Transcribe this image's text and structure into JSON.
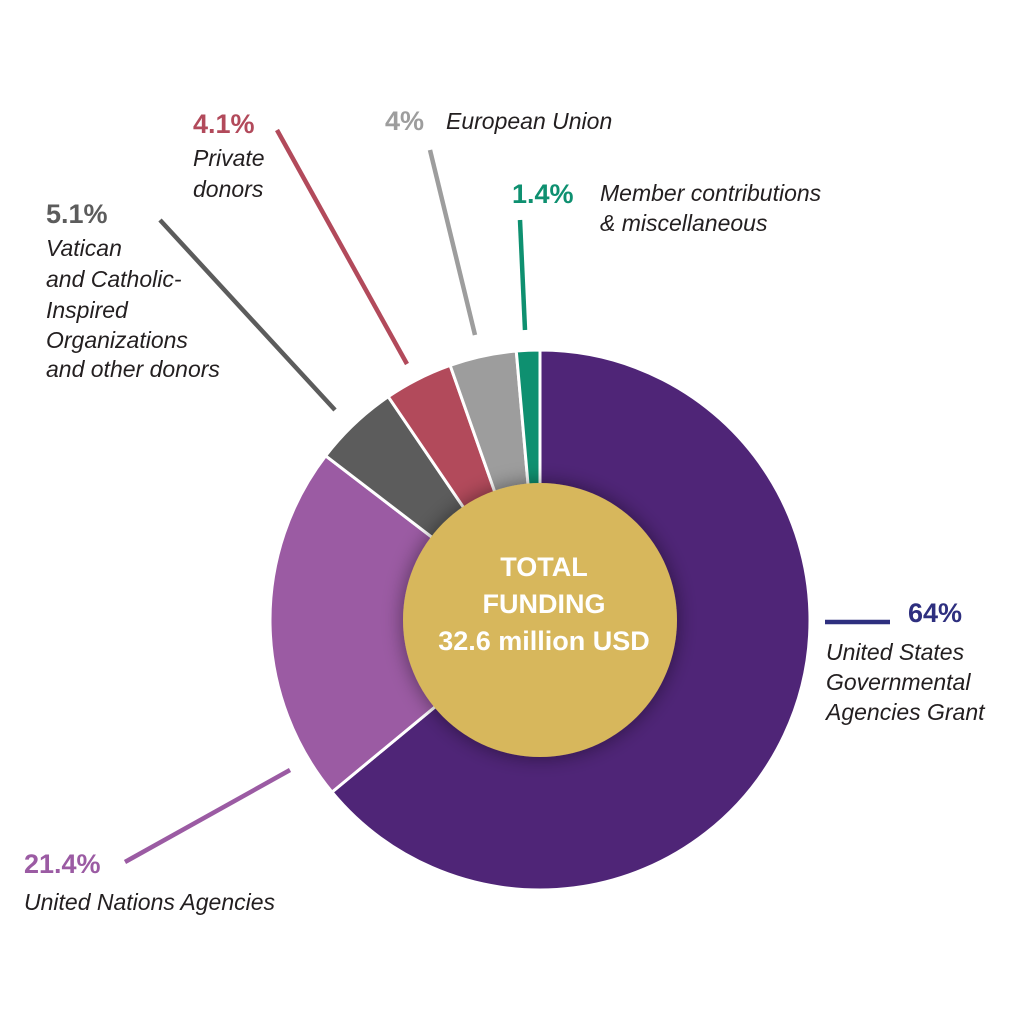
{
  "chart_data": {
    "type": "pie",
    "center": {
      "line1": "TOTAL",
      "line2": "FUNDING",
      "line3": "32.6 million USD",
      "color": "#d7b75c"
    },
    "slices": [
      {
        "percent_label": "64%",
        "value": 64.0,
        "label_lines": [
          "United States",
          "Governmental",
          "Agencies Grant"
        ],
        "color": "#4f2577",
        "label_color": "#2e2f7f"
      },
      {
        "percent_label": "21.4%",
        "value": 21.4,
        "label_lines": [
          "United Nations Agencies"
        ],
        "color": "#9b5ba3",
        "label_color": "#9b5ba3"
      },
      {
        "percent_label": "5.1%",
        "value": 5.1,
        "label_lines": [
          "Vatican",
          "and Catholic-",
          "Inspired",
          "Organizations",
          "and other donors"
        ],
        "color": "#5c5c5c",
        "label_color": "#5c5c5c"
      },
      {
        "percent_label": "4.1%",
        "value": 4.1,
        "label_lines": [
          "Private",
          "donors"
        ],
        "color": "#b24a5b",
        "label_color": "#b24a5b"
      },
      {
        "percent_label": "4%",
        "value": 4.0,
        "label_lines": [
          "European Union"
        ],
        "color": "#9d9d9d",
        "label_color": "#9d9d9d"
      },
      {
        "percent_label": "1.4%",
        "value": 1.4,
        "label_lines": [
          "Member contributions",
          "& miscellaneous"
        ],
        "color": "#0e9070",
        "label_color": "#0e9070"
      }
    ]
  }
}
